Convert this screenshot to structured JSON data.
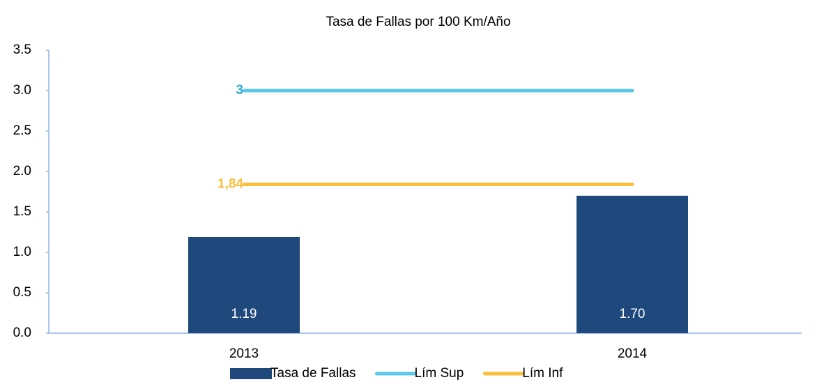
{
  "chart_data": {
    "type": "bar_line",
    "title": "Tasa de Fallas por 100 Km/Año",
    "categories": [
      "2013",
      "2014"
    ],
    "series": [
      {
        "name": "Tasa de Fallas",
        "type": "bar",
        "color": "#1f497d",
        "values": [
          1.19,
          1.7
        ],
        "value_labels": [
          "1.19",
          "1.70"
        ]
      },
      {
        "name": "Lím Sup",
        "type": "line",
        "color": "#5bc8e8",
        "label_color": "#31a9d4",
        "values": [
          3,
          3
        ],
        "value_labels": [
          "3",
          null
        ]
      },
      {
        "name": "Lím Inf",
        "type": "line",
        "color": "#f9bf3b",
        "label_color": "#f9bf3b",
        "values": [
          1.84,
          1.84
        ],
        "value_labels": [
          "1,84",
          null
        ]
      }
    ],
    "ylim": [
      0,
      3.5
    ],
    "yticks": [
      {
        "value": 0,
        "label": "0.0"
      },
      0.5,
      {
        "value": 1,
        "label": "1.0"
      },
      1.5,
      {
        "value": 2,
        "label": "2.0"
      },
      2.5,
      {
        "value": 3,
        "label": "3.0"
      },
      3.5
    ],
    "grid": false,
    "legend": "bottom"
  }
}
